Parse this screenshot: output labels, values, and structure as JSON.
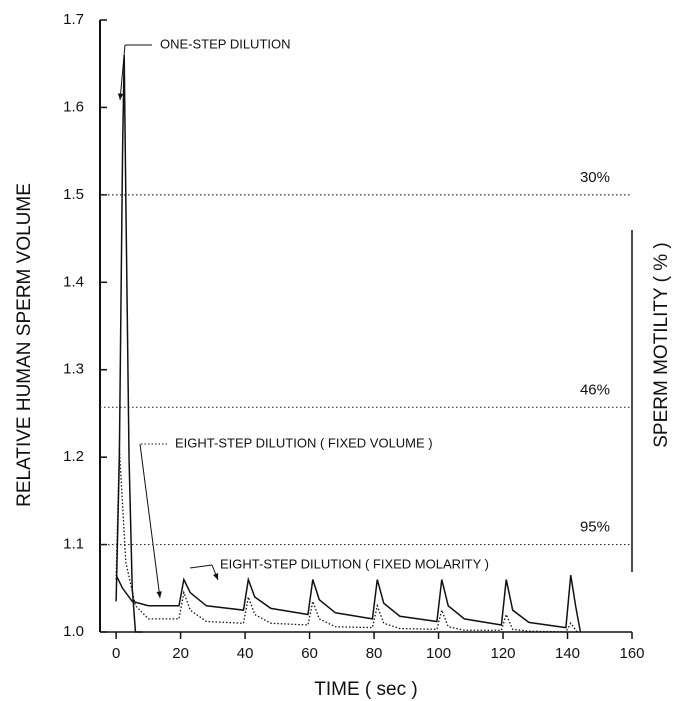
{
  "chart_data": {
    "type": "line",
    "xlabel": "TIME ( sec )",
    "ylabel": "RELATIVE HUMAN SPERM VOLUME",
    "y2label": "SPERM MOTILITY ( % )",
    "xlim": [
      -5,
      160
    ],
    "xticks": [
      0,
      20,
      40,
      60,
      80,
      100,
      120,
      140,
      160
    ],
    "ylim": [
      1,
      1.7
    ],
    "yticks": [
      {
        "value": 1,
        "label": "1.0"
      },
      1.1,
      1.2,
      1.3,
      1.4,
      1.5,
      1.6,
      1.7
    ],
    "reference_lines": [
      {
        "value": 1.5,
        "label": "30%"
      },
      {
        "value": 1.257,
        "label": "46%"
      },
      {
        "value": 1.1,
        "label": "95%"
      }
    ],
    "series": [
      {
        "name": "ONE-STEP DILUTION",
        "color": "#111111",
        "dash": "solid",
        "x": [
          0,
          1,
          2,
          2.5,
          3,
          4,
          5,
          6,
          8
        ],
        "values": [
          1.035,
          1.2,
          1.55,
          1.66,
          1.5,
          1.2,
          1.05,
          1.0,
          1.0
        ]
      },
      {
        "name": "EIGHT-STEP DILUTION ( FIXED VOLUME )",
        "color": "#111111",
        "dash": "dotted",
        "x": [
          0,
          1,
          3,
          6,
          10,
          19.5,
          21,
          23,
          28,
          39.5,
          41,
          43,
          48,
          59.5,
          61,
          63,
          68,
          79.5,
          81,
          83,
          88,
          99.5,
          101,
          103,
          108,
          119.5,
          121,
          123,
          128,
          139.5,
          141,
          143
        ],
        "values": [
          1.06,
          1.21,
          1.08,
          1.03,
          1.015,
          1.015,
          1.045,
          1.025,
          1.012,
          1.01,
          1.04,
          1.02,
          1.01,
          1.008,
          1.035,
          1.015,
          1.006,
          1.005,
          1.03,
          1.01,
          1.004,
          1.003,
          1.025,
          1.006,
          1.002,
          1.002,
          1.02,
          1.003,
          1.001,
          1.0,
          1.01,
          1.0
        ]
      },
      {
        "name": "EIGHT-STEP DILUTION ( FIXED MOLARITY )",
        "color": "#111111",
        "dash": "solid",
        "x": [
          0,
          2,
          5,
          10,
          19.5,
          21,
          23,
          28,
          39.5,
          41,
          43,
          48,
          59.5,
          61,
          63,
          68,
          79.5,
          81,
          83,
          88,
          99.5,
          101,
          103,
          108,
          119.5,
          121,
          123,
          128,
          139.5,
          141,
          142.5,
          144
        ],
        "values": [
          1.065,
          1.05,
          1.035,
          1.03,
          1.03,
          1.06,
          1.045,
          1.03,
          1.025,
          1.06,
          1.04,
          1.027,
          1.02,
          1.06,
          1.037,
          1.022,
          1.015,
          1.06,
          1.033,
          1.018,
          1.012,
          1.06,
          1.03,
          1.015,
          1.008,
          1.06,
          1.025,
          1.011,
          1.005,
          1.065,
          1.03,
          1.0
        ]
      }
    ]
  }
}
